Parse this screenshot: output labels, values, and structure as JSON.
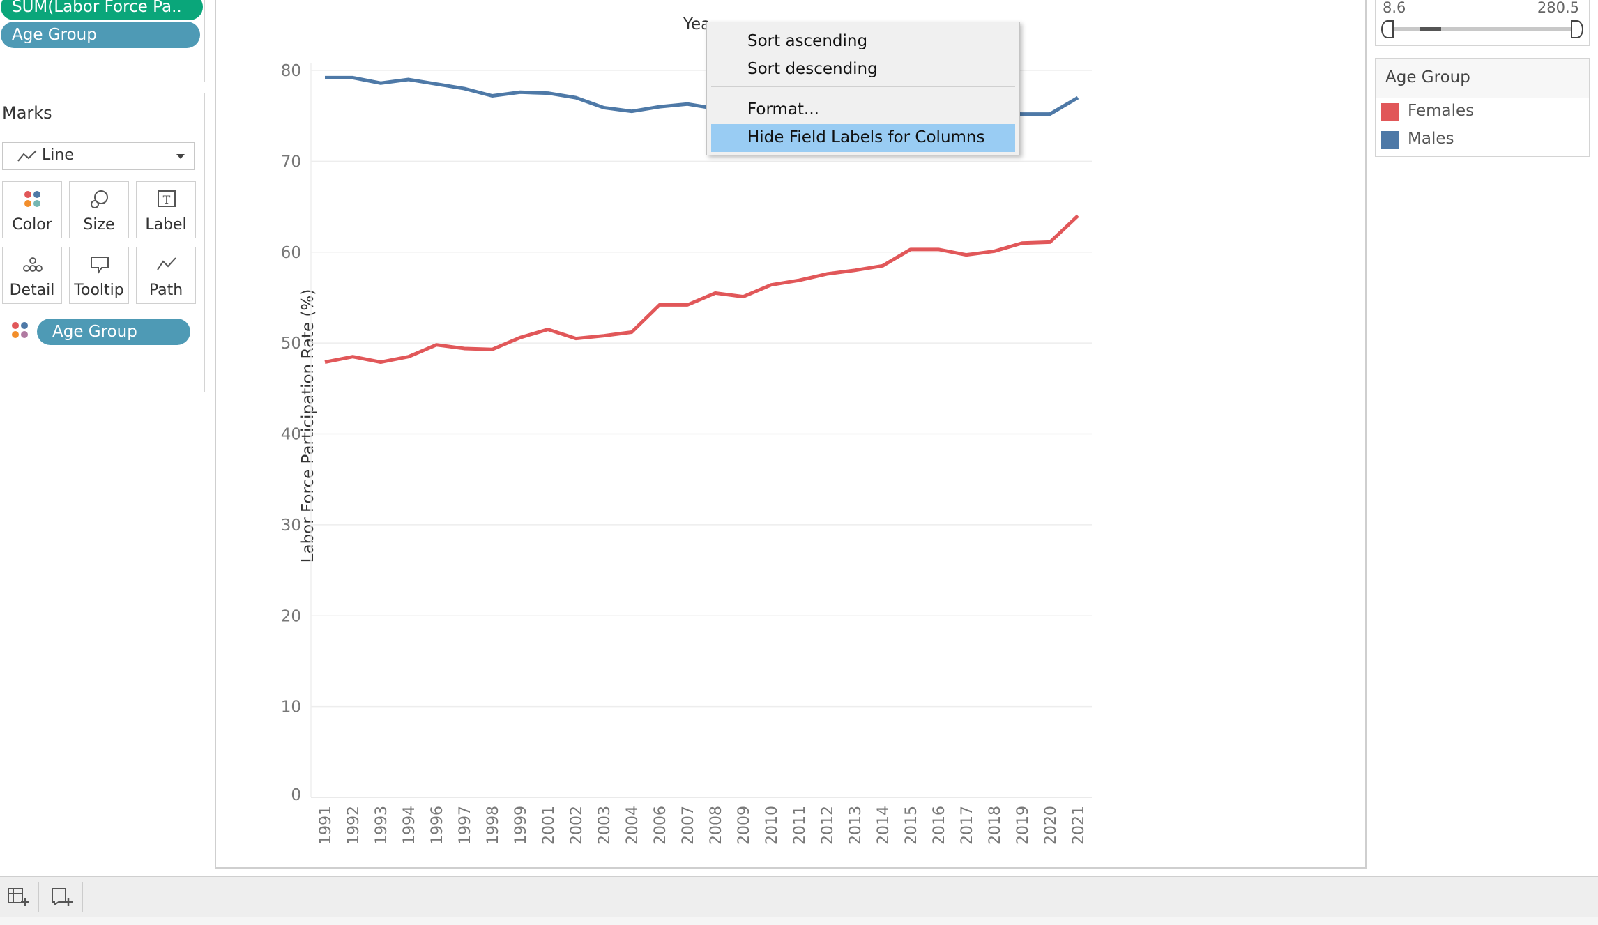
{
  "shelves": {
    "rows_pills": [
      "SUM(Labor Force Pa..",
      "Age Group"
    ]
  },
  "marks": {
    "title": "Marks",
    "mark_type": "Line",
    "buttons": [
      "Color",
      "Size",
      "Label",
      "Detail",
      "Tooltip",
      "Path"
    ],
    "color_pill": "Age Group"
  },
  "context_menu": {
    "items": [
      "Sort ascending",
      "Sort descending",
      "Format...",
      "Hide Field Labels for Columns"
    ],
    "highlighted_item": "Hide Field Labels for Columns"
  },
  "column_header_partial": "Yea",
  "slider": {
    "min_label": "8.6",
    "max_label": "280.5"
  },
  "legend": {
    "title": "Age Group",
    "items": [
      {
        "label": "Females",
        "color": "#e15759"
      },
      {
        "label": "Males",
        "color": "#4e79a7"
      }
    ]
  },
  "chart_data": {
    "type": "line",
    "title": "",
    "xlabel": "",
    "ylabel": "Labor Force Participation Rate (%)",
    "ylim": [
      0,
      80
    ],
    "yticks": [
      0,
      10,
      20,
      30,
      40,
      50,
      60,
      70,
      80
    ],
    "grid": true,
    "categories": [
      "1991",
      "1992",
      "1993",
      "1994",
      "1996",
      "1997",
      "1998",
      "1999",
      "2001",
      "2002",
      "2003",
      "2004",
      "2006",
      "2007",
      "2008",
      "2009",
      "2010",
      "2011",
      "2012",
      "2013",
      "2014",
      "2015",
      "2016",
      "2017",
      "2018",
      "2019",
      "2020",
      "2021"
    ],
    "series": [
      {
        "name": "Males",
        "color": "#4e79a7",
        "values": [
          79.2,
          79.2,
          78.6,
          79.0,
          78.5,
          78.0,
          77.2,
          77.6,
          77.5,
          77.0,
          75.9,
          75.5,
          76.0,
          76.3,
          75.8,
          75.4,
          75.3,
          75.2,
          75.1,
          75.0,
          75.1,
          75.3,
          75.3,
          75.3,
          75.3,
          75.2,
          75.2,
          77.0
        ]
      },
      {
        "name": "Females",
        "color": "#e15759",
        "values": [
          47.9,
          48.5,
          47.9,
          48.5,
          49.8,
          49.4,
          49.3,
          50.6,
          51.5,
          50.5,
          50.8,
          51.2,
          54.2,
          54.2,
          55.5,
          55.1,
          56.4,
          56.9,
          57.6,
          58.0,
          58.5,
          60.3,
          60.3,
          59.7,
          60.1,
          61.0,
          61.1,
          64.0
        ]
      }
    ]
  }
}
